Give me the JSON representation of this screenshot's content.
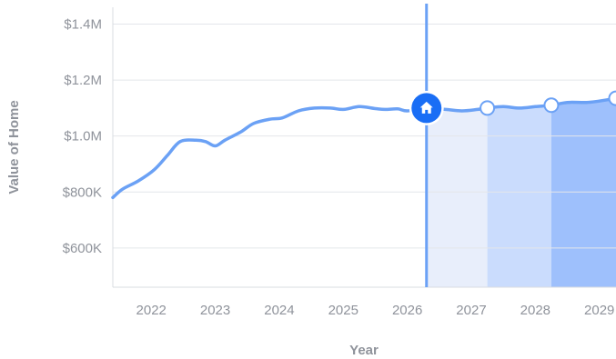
{
  "chart_data": {
    "type": "line",
    "title": "",
    "xlabel": "Year",
    "ylabel": "Value of Home",
    "xlim": [
      2021.4,
      2029.26
    ],
    "ylim": [
      460000,
      1460000
    ],
    "x_ticks": [
      2022,
      2023,
      2024,
      2025,
      2026,
      2027,
      2028,
      2029
    ],
    "x_tick_labels": [
      "2022",
      "2023",
      "2024",
      "2025",
      "2026",
      "2027",
      "2028",
      "2029"
    ],
    "y_ticks": [
      600000,
      800000,
      1000000,
      1200000,
      1400000
    ],
    "y_tick_labels": [
      "$600K",
      "$800K",
      "$1.0M",
      "$1.2M",
      "$1.4M"
    ],
    "grid": true,
    "current_marker": {
      "x": 2026.3,
      "value": 1100000,
      "icon": "home-icon"
    },
    "series": [
      {
        "kind": "history",
        "color": "#6ba1f5",
        "points": [
          [
            2021.4,
            780000
          ],
          [
            2021.55,
            810000
          ],
          [
            2021.8,
            840000
          ],
          [
            2022.05,
            880000
          ],
          [
            2022.25,
            930000
          ],
          [
            2022.45,
            980000
          ],
          [
            2022.7,
            985000
          ],
          [
            2022.85,
            980000
          ],
          [
            2023.0,
            965000
          ],
          [
            2023.15,
            985000
          ],
          [
            2023.4,
            1015000
          ],
          [
            2023.6,
            1045000
          ],
          [
            2023.85,
            1060000
          ],
          [
            2024.05,
            1065000
          ],
          [
            2024.3,
            1090000
          ],
          [
            2024.55,
            1100000
          ],
          [
            2024.8,
            1100000
          ],
          [
            2025.0,
            1095000
          ],
          [
            2025.25,
            1105000
          ],
          [
            2025.5,
            1098000
          ],
          [
            2025.65,
            1095000
          ],
          [
            2025.85,
            1097000
          ],
          [
            2026.0,
            1090000
          ],
          [
            2026.3,
            1100000
          ]
        ]
      },
      {
        "kind": "forecast",
        "color": "#6ba1f5",
        "points": [
          [
            2026.3,
            1100000
          ],
          [
            2026.6,
            1095000
          ],
          [
            2026.85,
            1090000
          ],
          [
            2027.1,
            1095000
          ],
          [
            2027.25,
            1100000
          ],
          [
            2027.5,
            1105000
          ],
          [
            2027.75,
            1100000
          ],
          [
            2028.0,
            1105000
          ],
          [
            2028.25,
            1110000
          ],
          [
            2028.5,
            1120000
          ],
          [
            2028.8,
            1120000
          ],
          [
            2029.0,
            1125000
          ],
          [
            2029.26,
            1135000
          ]
        ]
      }
    ],
    "forecast_bands": [
      {
        "from": 2026.3,
        "to": 2027.25,
        "color": "#e8eefb"
      },
      {
        "from": 2027.25,
        "to": 2028.25,
        "color": "#cadcfd"
      },
      {
        "from": 2028.25,
        "to": 2029.26,
        "color": "#9ec0fc"
      }
    ],
    "forecast_points": [
      {
        "x": 2027.25,
        "value": 1100000
      },
      {
        "x": 2028.25,
        "value": 1110000
      },
      {
        "x": 2029.26,
        "value": 1135000
      }
    ],
    "colors": {
      "line": "#6ba1f5",
      "marker_line": "#6ba1f5",
      "home_marker": "#1a6ef5"
    }
  }
}
